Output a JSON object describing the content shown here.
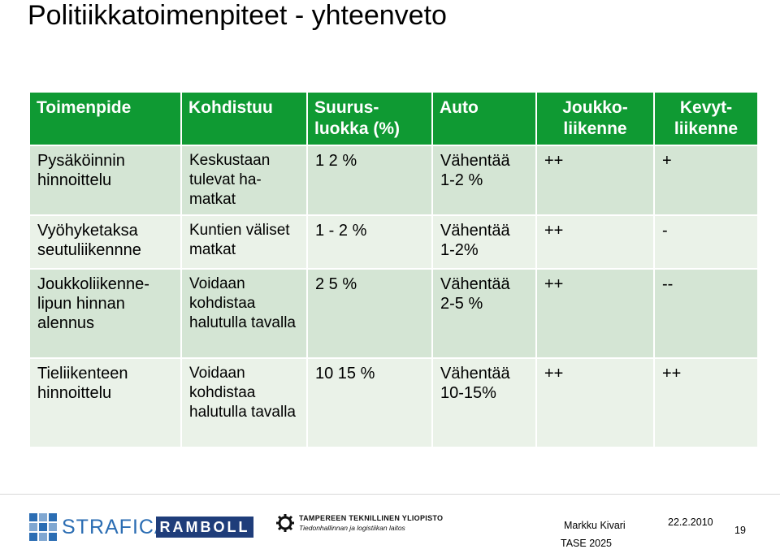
{
  "title": "Politiikkatoimenpiteet - yhteenveto",
  "table": {
    "headers": [
      "Toimenpide",
      "Kohdistuu",
      "Suurus-\nluokka (%)",
      "Auto",
      "Joukko-\nliikenne",
      "Kevyt-\nliikenne"
    ],
    "rows": [
      [
        "Pysäköinnin hinnoittelu",
        "Keskustaan tulevat ha-\nmatkat",
        "1 2 %",
        "Vähentää\n1-2 %",
        "++",
        "+"
      ],
      [
        "Vyöhyketaksa seutuliikennne",
        "Kuntien väliset matkat",
        "1 - 2 %",
        "Vähentää\n1-2%",
        "++",
        "-"
      ],
      [
        "Joukkoliikenne-\nlipun hinnan\nalennus",
        "Voidaan kohdistaa halutulla tavalla",
        "2 5 %",
        "Vähentää\n2-5 %",
        "++",
        "--"
      ],
      [
        "Tieliikenteen hinnoittelu",
        "Voidaan kohdistaa halutulla tavalla",
        "10 15 %",
        "Vähentää\n10-15%",
        "++",
        "++"
      ]
    ]
  },
  "footer": {
    "logo_strafica": "STRAFICA",
    "logo_ramboll": "RAMBOLL",
    "logo_tty_line1": "TAMPEREEN TEKNILLINEN YLIOPISTO",
    "logo_tty_line2": "Tiedonhallinnan ja logistiikan laitos",
    "author": "Markku Kivari",
    "event": "TASE 2025",
    "date": "22.2.2010",
    "page": "19"
  },
  "colors": {
    "header_bg": "#0f9a33",
    "row_dark": "#d4e5d4",
    "row_light": "#eaf2e8"
  }
}
